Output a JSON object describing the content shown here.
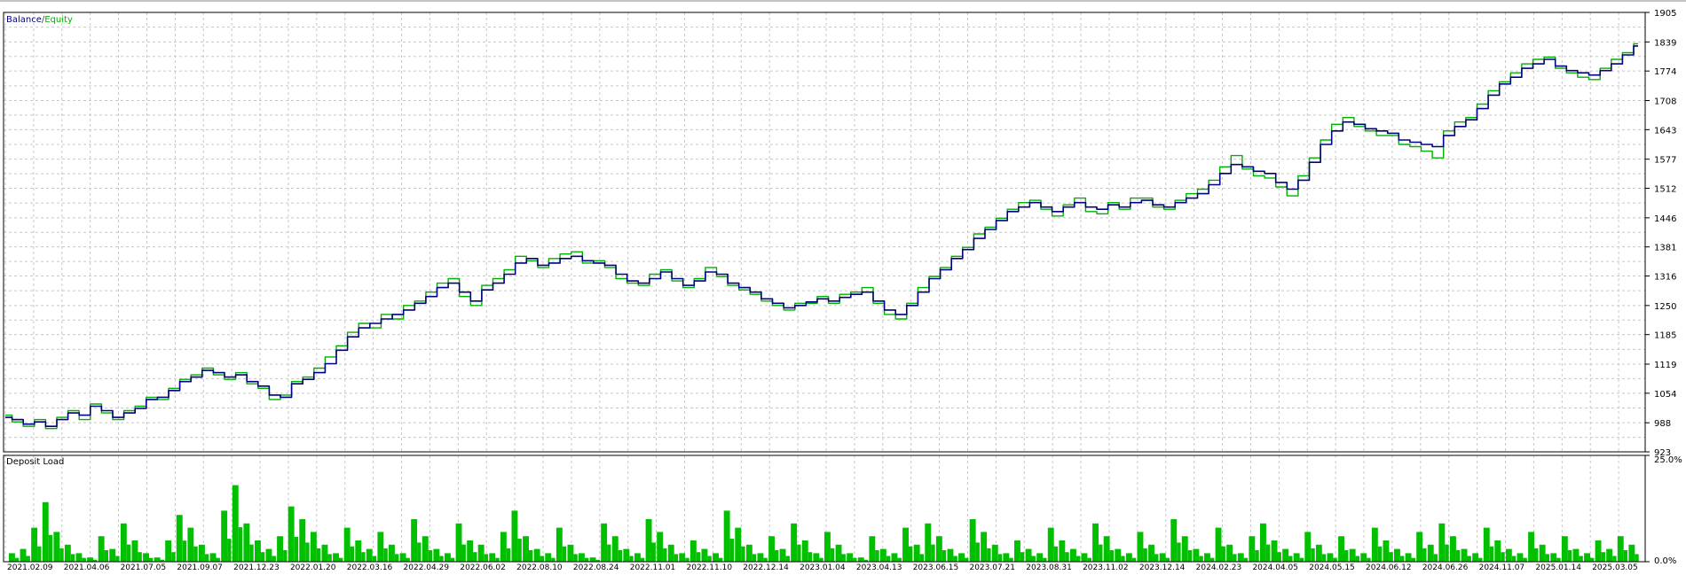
{
  "colors": {
    "background": "#ffffff",
    "frame": "#000000",
    "grid": "#c8c8c8",
    "balance": "#000080",
    "equity": "#00b000",
    "deposit_load": "#00c000",
    "text": "#000000"
  },
  "chart_data": [
    {
      "type": "line",
      "legend": {
        "placement": "top-left",
        "separator": "/"
      },
      "grid": true,
      "ylim": [
        923,
        1905
      ],
      "y_ticks": [
        "1905",
        "1839",
        "1774",
        "1708",
        "1643",
        "1577",
        "1512",
        "1446",
        "1381",
        "1316",
        "1250",
        "1185",
        "1119",
        "1054",
        "988",
        "923"
      ],
      "x_ticks": [
        "2021.02.09",
        "2021.04.06",
        "2021.07.05",
        "2021.09.07",
        "2021.12.23",
        "2022.01.20",
        "2022.03.16",
        "2022.04.29",
        "2022.06.02",
        "2022.08.10",
        "2022.08.24",
        "2022.11.01",
        "2022.11.10",
        "2022.12.14",
        "2023.01.04",
        "2023.04.13",
        "2023.06.15",
        "2023.07.21",
        "2023.08.31",
        "2023.11.02",
        "2023.12.14",
        "2024.02.23",
        "2024.04.05",
        "2024.05.15",
        "2024.06.12",
        "2024.06.26",
        "2024.11.07",
        "2025.01.14",
        "2025.03.05"
      ],
      "series": [
        {
          "name": "Balance",
          "color": "#000080",
          "values": [
            1000,
            995,
            985,
            990,
            980,
            995,
            1010,
            1005,
            1025,
            1015,
            1000,
            1010,
            1020,
            1040,
            1045,
            1060,
            1080,
            1090,
            1105,
            1100,
            1090,
            1095,
            1080,
            1070,
            1050,
            1045,
            1075,
            1085,
            1100,
            1120,
            1150,
            1180,
            1200,
            1210,
            1220,
            1230,
            1240,
            1255,
            1270,
            1290,
            1300,
            1280,
            1260,
            1285,
            1300,
            1320,
            1345,
            1355,
            1340,
            1345,
            1355,
            1360,
            1350,
            1345,
            1340,
            1320,
            1305,
            1300,
            1310,
            1325,
            1310,
            1295,
            1305,
            1325,
            1320,
            1300,
            1290,
            1280,
            1265,
            1255,
            1245,
            1250,
            1258,
            1265,
            1260,
            1268,
            1275,
            1280,
            1260,
            1240,
            1230,
            1250,
            1280,
            1310,
            1330,
            1355,
            1375,
            1400,
            1420,
            1440,
            1460,
            1470,
            1480,
            1470,
            1460,
            1470,
            1480,
            1470,
            1465,
            1475,
            1470,
            1480,
            1485,
            1475,
            1470,
            1480,
            1490,
            1500,
            1520,
            1545,
            1565,
            1560,
            1550,
            1545,
            1525,
            1510,
            1530,
            1570,
            1610,
            1640,
            1660,
            1655,
            1645,
            1640,
            1635,
            1620,
            1615,
            1610,
            1605,
            1630,
            1650,
            1665,
            1690,
            1720,
            1745,
            1760,
            1780,
            1790,
            1800,
            1785,
            1775,
            1770,
            1765,
            1775,
            1790,
            1810,
            1830
          ]
        },
        {
          "name": "Equity",
          "color": "#00b000",
          "values": [
            1005,
            990,
            980,
            995,
            975,
            1000,
            1015,
            995,
            1030,
            1010,
            995,
            1015,
            1025,
            1045,
            1040,
            1065,
            1085,
            1095,
            1110,
            1095,
            1085,
            1100,
            1075,
            1065,
            1040,
            1050,
            1080,
            1090,
            1110,
            1135,
            1160,
            1190,
            1210,
            1200,
            1230,
            1220,
            1250,
            1260,
            1280,
            1300,
            1310,
            1270,
            1250,
            1295,
            1310,
            1330,
            1360,
            1350,
            1335,
            1355,
            1365,
            1370,
            1345,
            1350,
            1335,
            1310,
            1300,
            1295,
            1320,
            1330,
            1305,
            1290,
            1310,
            1335,
            1315,
            1295,
            1285,
            1275,
            1260,
            1250,
            1240,
            1255,
            1255,
            1270,
            1255,
            1275,
            1280,
            1290,
            1255,
            1230,
            1220,
            1255,
            1290,
            1315,
            1335,
            1360,
            1380,
            1410,
            1425,
            1445,
            1465,
            1480,
            1485,
            1465,
            1450,
            1475,
            1490,
            1460,
            1455,
            1480,
            1465,
            1490,
            1490,
            1470,
            1465,
            1485,
            1500,
            1510,
            1530,
            1560,
            1585,
            1555,
            1540,
            1535,
            1515,
            1495,
            1540,
            1580,
            1620,
            1655,
            1670,
            1650,
            1640,
            1630,
            1630,
            1610,
            1605,
            1595,
            1580,
            1640,
            1660,
            1670,
            1700,
            1730,
            1750,
            1770,
            1790,
            1800,
            1805,
            1780,
            1770,
            1760,
            1755,
            1780,
            1800,
            1815,
            1835
          ]
        }
      ]
    },
    {
      "type": "bar",
      "title": "Deposit Load",
      "ylim": [
        0,
        25
      ],
      "y_ticks": [
        "25.0%",
        "0.0%"
      ],
      "values": [
        2,
        3,
        8,
        14,
        7,
        4,
        2,
        1,
        6,
        3,
        9,
        5,
        2,
        1,
        5,
        11,
        8,
        4,
        2,
        12,
        18,
        9,
        5,
        3,
        6,
        13,
        10,
        7,
        4,
        2,
        8,
        5,
        3,
        7,
        4,
        2,
        10,
        6,
        3,
        2,
        9,
        5,
        4,
        2,
        7,
        12,
        6,
        3,
        2,
        8,
        4,
        2,
        1,
        9,
        6,
        3,
        2,
        10,
        7,
        4,
        2,
        5,
        3,
        2,
        12,
        8,
        4,
        2,
        6,
        3,
        9,
        5,
        2,
        7,
        4,
        2,
        1,
        6,
        3,
        2,
        8,
        4,
        9,
        6,
        3,
        2,
        10,
        7,
        4,
        2,
        5,
        3,
        2,
        8,
        5,
        3,
        2,
        9,
        6,
        3,
        2,
        7,
        4,
        2,
        10,
        6,
        3,
        2,
        8,
        4,
        2,
        6,
        9,
        5,
        3,
        2,
        7,
        4,
        2,
        6,
        3,
        2,
        8,
        5,
        3,
        2,
        7,
        4,
        9,
        6,
        3,
        2,
        8,
        5,
        3,
        2,
        7,
        4,
        2,
        6,
        3,
        2,
        5,
        3,
        6,
        4
      ]
    }
  ]
}
